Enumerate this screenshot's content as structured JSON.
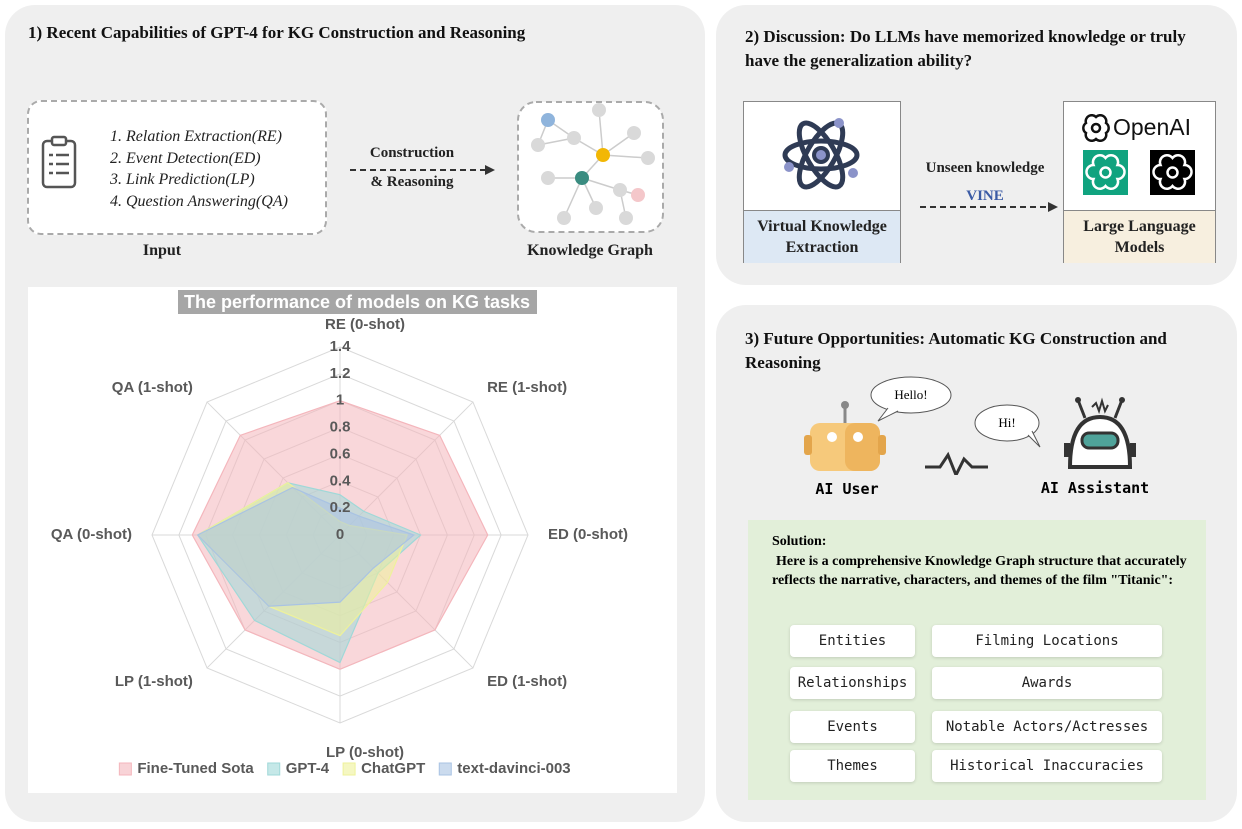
{
  "panel1": {
    "title": "1) Recent Capabilities of GPT-4 for KG Construction and Reasoning",
    "tasks": [
      "1. Relation Extraction(RE)",
      "2. Event Detection(ED)",
      "3. Link Prediction(LP)",
      "4. Question Answering(QA)"
    ],
    "input_label": "Input",
    "arrow_label": [
      "Construction",
      "& Reasoning"
    ],
    "kg_label": "Knowledge Graph"
  },
  "chart_data": {
    "type": "radar",
    "title": "The performance of models on KG tasks",
    "categories": [
      "RE (0-shot)",
      "RE (1-shot)",
      "ED (0-shot)",
      "ED (1-shot)",
      "LP (0-shot)",
      "LP (1-shot)",
      "QA (0-shot)",
      "QA (1-shot)"
    ],
    "ylim": [
      0,
      1.4
    ],
    "yticks": [
      0,
      0.2,
      0.4,
      0.6,
      0.8,
      1,
      1.2,
      1.4
    ],
    "grid": true,
    "legend": "bottom",
    "series": [
      {
        "name": "Fine-Tuned Sota",
        "color": "#f4b6bc",
        "values": [
          1.0,
          1.05,
          1.1,
          1.0,
          1.0,
          1.0,
          1.1,
          1.05
        ]
      },
      {
        "name": "GPT-4",
        "color": "#9fd8d8",
        "values": [
          0.3,
          0.25,
          0.6,
          0.4,
          0.95,
          0.9,
          1.06,
          0.55
        ]
      },
      {
        "name": "ChatGPT",
        "color": "#eef29a",
        "values": [
          0.1,
          0.1,
          0.5,
          0.5,
          0.75,
          0.75,
          1.06,
          0.55
        ]
      },
      {
        "name": "text-davinci-003",
        "color": "#a9c3e3",
        "values": [
          0.2,
          0.2,
          0.55,
          0.35,
          0.5,
          0.75,
          1.06,
          0.5
        ]
      }
    ]
  },
  "panel2": {
    "title": "2) Discussion: Do LLMs have memorized knowledge or truly have the generalization ability?",
    "left_box": "Virtual Knowledge Extraction",
    "arrow_label": "Unseen  knowledge",
    "arrow_sublabel": "VINE",
    "openai": "OpenAI",
    "right_box": "Large Language Models"
  },
  "panel3": {
    "title": "3) Future Opportunities: Automatic KG Construction and Reasoning",
    "hello": "Hello!",
    "hi": "Hi!",
    "user": "AI User",
    "assistant": "AI Assistant",
    "solution_title": "Solution:",
    "solution_text": "Here is a comprehensive Knowledge Graph structure that accurately reflects the narrative, characters, and themes of the film \"Titanic\":",
    "items": [
      "Entities",
      "Filming Locations",
      "Relationships",
      "Awards",
      "Events",
      "Notable Actors/Actresses",
      "Themes",
      "Historical Inaccuracies"
    ]
  }
}
